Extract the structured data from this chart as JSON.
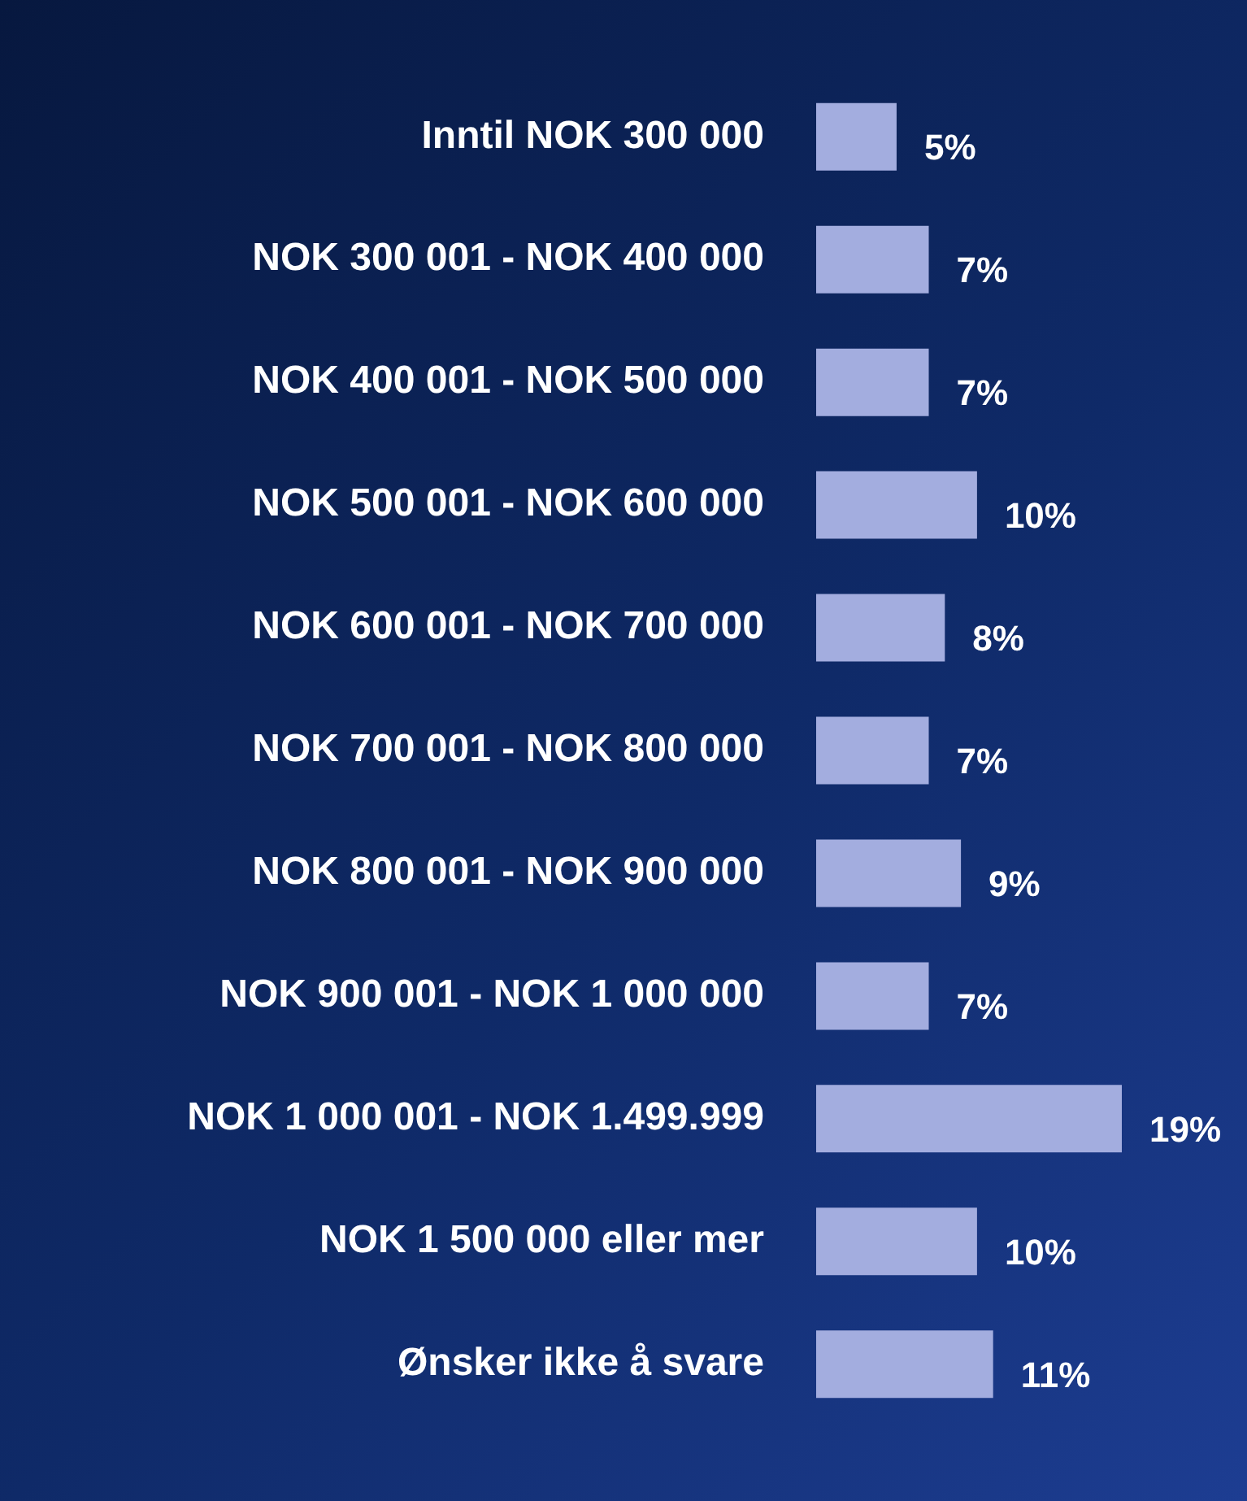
{
  "chart_data": {
    "type": "bar",
    "orientation": "horizontal",
    "categories": [
      "Inntil NOK 300 000",
      "NOK 300 001 - NOK 400 000",
      "NOK 400 001 - NOK 500 000",
      "NOK 500 001 - NOK 600 000",
      "NOK 600 001 - NOK 700 000",
      "NOK 700 001 - NOK 800 000",
      "NOK 800 001 - NOK 900 000",
      "NOK 900 001 - NOK 1 000 000",
      "NOK 1 000 001 - NOK 1.499.999",
      "NOK 1 500 000 eller mer",
      "Ønsker ikke å svare"
    ],
    "values": [
      5,
      7,
      7,
      10,
      8,
      7,
      9,
      7,
      19,
      10,
      11
    ],
    "value_labels": [
      "5%",
      "7%",
      "7%",
      "10%",
      "8%",
      "7%",
      "9%",
      "7%",
      "19%",
      "10%",
      "11%"
    ],
    "color": "#a3addf",
    "grid": false,
    "legend": false
  }
}
